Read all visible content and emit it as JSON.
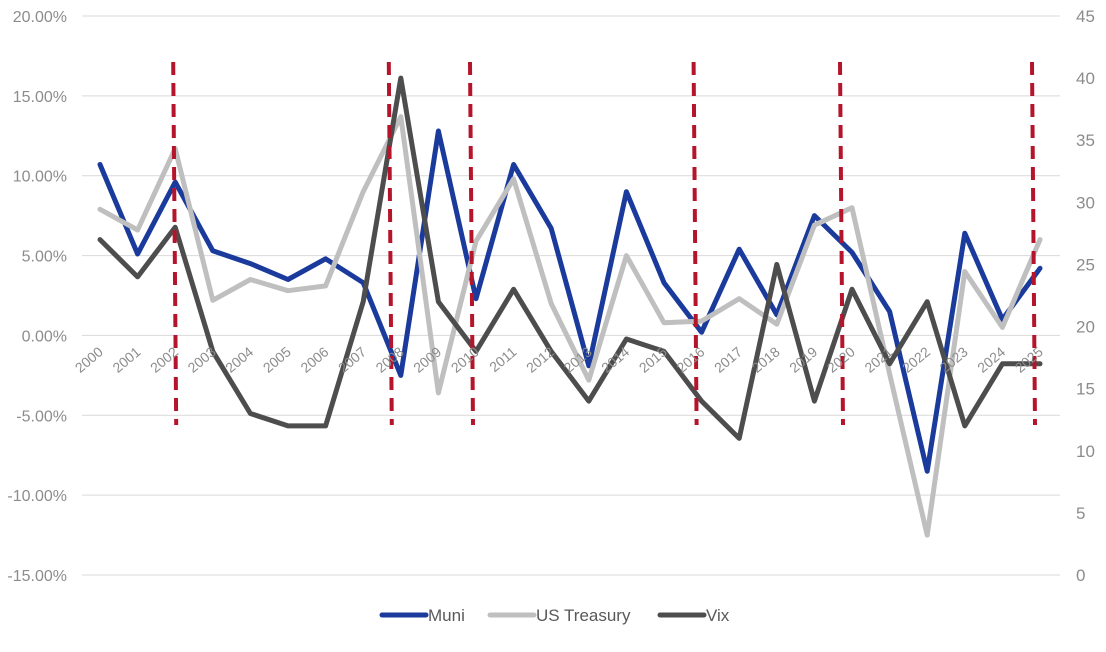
{
  "chart_data": {
    "type": "line",
    "title": "",
    "xlabel": "",
    "ylabel": "",
    "categories": [
      "2000",
      "2001",
      "2002",
      "2003",
      "2004",
      "2005",
      "2006",
      "2007",
      "2008",
      "2009",
      "2010",
      "2011",
      "2012",
      "2013",
      "2014",
      "2015",
      "2016",
      "2017",
      "2018",
      "2019",
      "2020",
      "2021",
      "2022",
      "2023",
      "2024",
      "2025"
    ],
    "y_left": {
      "range": [
        -0.15,
        0.2
      ],
      "ticks": [
        -0.15,
        -0.1,
        -0.05,
        0.0,
        0.05,
        0.1,
        0.15,
        0.2
      ],
      "tick_labels": [
        "-15.00%",
        "-10.00%",
        "-5.00%",
        "0.00%",
        "5.00%",
        "10.00%",
        "15.00%",
        "20.00%"
      ]
    },
    "y_right": {
      "range": [
        0,
        45
      ],
      "ticks": [
        0,
        5,
        10,
        15,
        20,
        25,
        30,
        35,
        40,
        45
      ],
      "tick_labels": [
        "0",
        "5",
        "10",
        "15",
        "20",
        "25",
        "30",
        "35",
        "40",
        "45"
      ]
    },
    "grid": true,
    "legend_position": "bottom-center",
    "series": [
      {
        "name": "Muni",
        "axis": "left",
        "color": "#1a3a9c",
        "values": [
          0.107,
          0.051,
          0.096,
          0.053,
          0.045,
          0.035,
          0.048,
          0.033,
          -0.025,
          0.128,
          0.023,
          0.107,
          0.067,
          -0.019,
          0.09,
          0.033,
          0.002,
          0.054,
          0.013,
          0.075,
          0.052,
          0.015,
          -0.085,
          0.064,
          0.01,
          0.042
        ]
      },
      {
        "name": "US Treasury",
        "axis": "left",
        "color": "#bfbfbf",
        "values": [
          0.079,
          0.066,
          0.117,
          0.022,
          0.035,
          0.028,
          0.031,
          0.09,
          0.137,
          -0.036,
          0.059,
          0.098,
          0.02,
          -0.028,
          0.05,
          0.008,
          0.009,
          0.023,
          0.007,
          0.069,
          0.08,
          -0.024,
          -0.125,
          0.04,
          0.005,
          0.06
        ]
      },
      {
        "name": "Vix",
        "axis": "right",
        "color": "#4d4d4d",
        "values": [
          27,
          24,
          28,
          18,
          13,
          12,
          12,
          22,
          40,
          22,
          18,
          23,
          18,
          14,
          19,
          18,
          14,
          11,
          25,
          14,
          23,
          17,
          22,
          12,
          17,
          17
        ]
      }
    ],
    "annotations": {
      "vertical_dashed_lines": {
        "color": "#b5152b",
        "positions": [
          "2002",
          "2008",
          "2010",
          "2016",
          "2020",
          "2025"
        ]
      }
    }
  }
}
